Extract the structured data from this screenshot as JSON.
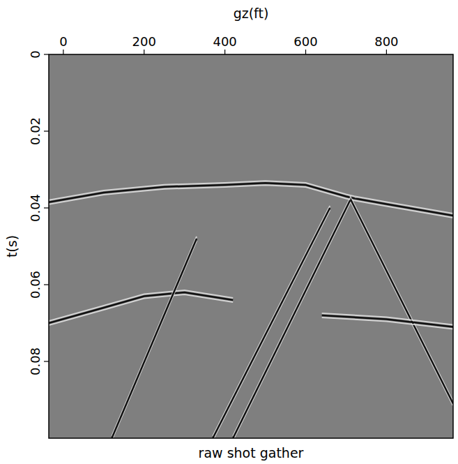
{
  "chart_data": {
    "type": "seismic",
    "title": "raw shot gather",
    "x_label": "gz(ft)",
    "y_label": "t(s)",
    "color": "#7f7f7f",
    "xlim": [
      -36,
      965
    ],
    "ylim": [
      0,
      0.1
    ],
    "xticks": [
      0,
      200,
      400,
      600,
      800
    ],
    "yticks": [
      0,
      0.02,
      0.04,
      0.06,
      0.08
    ],
    "series": [
      {
        "color": "#111111",
        "x": [
          -36,
          100,
          250,
          400,
          500,
          600,
          700,
          720,
          800,
          965
        ],
        "values": [
          0.0385,
          0.036,
          0.0345,
          0.034,
          0.0335,
          0.034,
          0.037,
          0.0375,
          0.039,
          0.042
        ]
      },
      {
        "color": "#111111",
        "x": [
          -36,
          100,
          200,
          300,
          420
        ],
        "values": [
          0.07,
          0.066,
          0.063,
          0.062,
          0.064
        ]
      },
      {
        "color": "#111111",
        "x": [
          710,
          965
        ],
        "values": [
          0.0375,
          0.091
        ]
      },
      {
        "color": "#111111",
        "x": [
          710,
          420
        ],
        "values": [
          0.038,
          0.1
        ]
      },
      {
        "color": "#111111",
        "x": [
          660,
          370
        ],
        "values": [
          0.04,
          0.1
        ]
      },
      {
        "color": "#111111",
        "x": [
          330,
          120
        ],
        "values": [
          0.048,
          0.1
        ]
      },
      {
        "color": "#111111",
        "x": [
          640,
          800,
          965
        ],
        "values": [
          0.068,
          0.069,
          0.071
        ]
      }
    ]
  }
}
